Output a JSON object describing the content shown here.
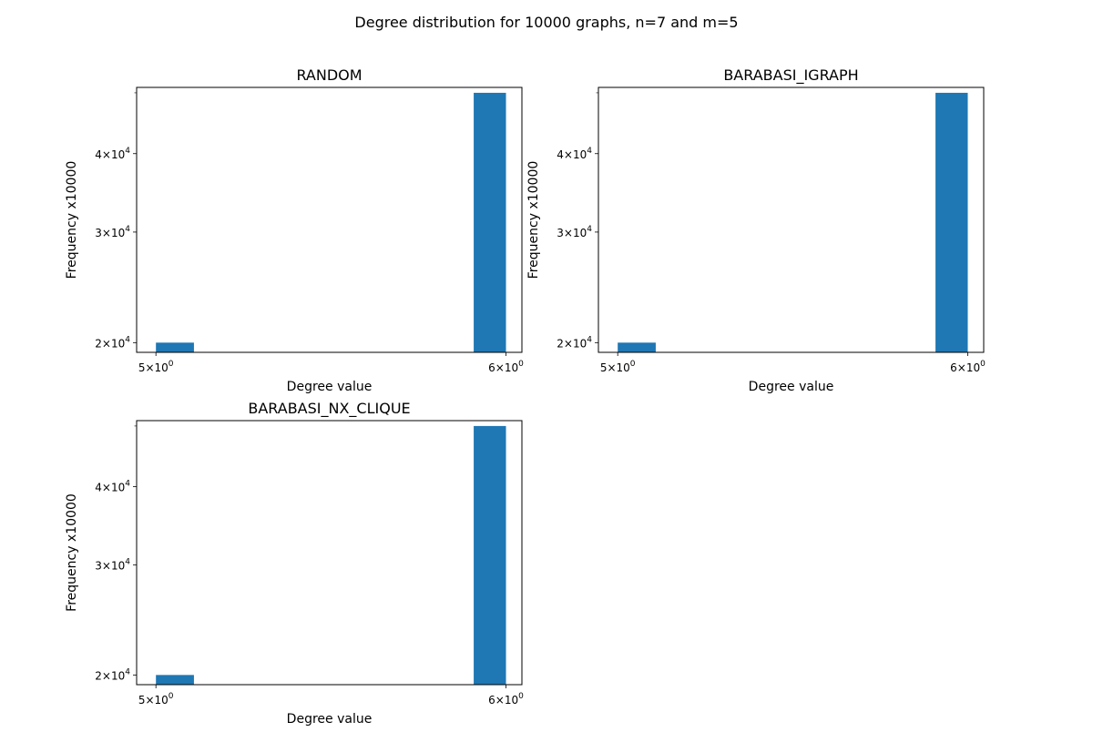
{
  "figure": {
    "suptitle": "Degree distribution for 10000 graphs, n=7 and m=5"
  },
  "chart_data": [
    {
      "type": "bar",
      "title": "RANDOM",
      "xlabel": "Degree value",
      "ylabel": "Frequency x10000",
      "x_scale": "log",
      "y_scale": "log",
      "xlim": [
        4.95,
        6.05
      ],
      "ylim": [
        19300,
        51000
      ],
      "x_ticks": [
        {
          "value": 5,
          "base": "5",
          "exp": "0"
        },
        {
          "value": 6,
          "base": "6",
          "exp": "0"
        }
      ],
      "y_ticks": [
        {
          "value": 20000,
          "base": "2",
          "exp": "4"
        },
        {
          "value": 30000,
          "base": "3",
          "exp": "4"
        },
        {
          "value": 40000,
          "base": "4",
          "exp": "4"
        }
      ],
      "bars": [
        {
          "x0": 5.0,
          "x1": 5.1,
          "value": 20000
        },
        {
          "x0": 5.9,
          "x1": 6.0,
          "value": 50000
        }
      ],
      "color": "#1f77b4",
      "grid": false
    },
    {
      "type": "bar",
      "title": "BARABASI_IGRAPH",
      "xlabel": "Degree value",
      "ylabel": "Frequency x10000",
      "x_scale": "log",
      "y_scale": "log",
      "xlim": [
        4.95,
        6.05
      ],
      "ylim": [
        19300,
        51000
      ],
      "x_ticks": [
        {
          "value": 5,
          "base": "5",
          "exp": "0"
        },
        {
          "value": 6,
          "base": "6",
          "exp": "0"
        }
      ],
      "y_ticks": [
        {
          "value": 20000,
          "base": "2",
          "exp": "4"
        },
        {
          "value": 30000,
          "base": "3",
          "exp": "4"
        },
        {
          "value": 40000,
          "base": "4",
          "exp": "4"
        }
      ],
      "bars": [
        {
          "x0": 5.0,
          "x1": 5.1,
          "value": 20000
        },
        {
          "x0": 5.9,
          "x1": 6.0,
          "value": 50000
        }
      ],
      "color": "#1f77b4",
      "grid": false
    },
    {
      "type": "bar",
      "title": "BARABASI_NX_CLIQUE",
      "xlabel": "Degree value",
      "ylabel": "Frequency x10000",
      "x_scale": "log",
      "y_scale": "log",
      "xlim": [
        4.95,
        6.05
      ],
      "ylim": [
        19300,
        51000
      ],
      "x_ticks": [
        {
          "value": 5,
          "base": "5",
          "exp": "0"
        },
        {
          "value": 6,
          "base": "6",
          "exp": "0"
        }
      ],
      "y_ticks": [
        {
          "value": 20000,
          "base": "2",
          "exp": "4"
        },
        {
          "value": 30000,
          "base": "3",
          "exp": "4"
        },
        {
          "value": 40000,
          "base": "4",
          "exp": "4"
        }
      ],
      "bars": [
        {
          "x0": 5.0,
          "x1": 5.1,
          "value": 20000
        },
        {
          "x0": 5.9,
          "x1": 6.0,
          "value": 50000
        }
      ],
      "color": "#1f77b4",
      "grid": false
    }
  ]
}
